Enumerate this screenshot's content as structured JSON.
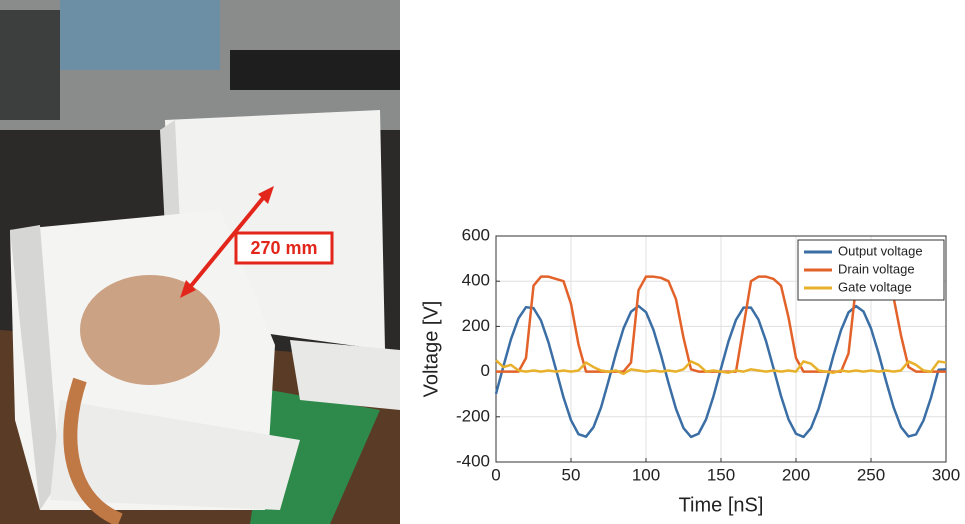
{
  "photo": {
    "annotation": "270 mm"
  },
  "chart_data": {
    "type": "line",
    "xlabel": "Time [nS]",
    "ylabel": "Voltage [V]",
    "x": [
      0,
      5,
      10,
      15,
      20,
      25,
      30,
      35,
      40,
      45,
      50,
      55,
      60,
      65,
      70,
      75,
      80,
      85,
      90,
      95,
      100,
      105,
      110,
      115,
      120,
      125,
      130,
      135,
      140,
      145,
      150,
      155,
      160,
      165,
      170,
      175,
      180,
      185,
      190,
      195,
      200,
      205,
      210,
      215,
      220,
      225,
      230,
      235,
      240,
      245,
      250,
      255,
      260,
      265,
      270,
      275,
      280,
      285,
      290,
      295,
      300
    ],
    "series": [
      {
        "name": "Output voltage",
        "color": "#3a6ea5",
        "values": [
          -98,
          25,
          144,
          236,
          285,
          281,
          226,
          129,
          9,
          -114,
          -215,
          -277,
          -288,
          -246,
          -159,
          -42,
          81,
          191,
          265,
          290,
          263,
          184,
          73,
          -50,
          -165,
          -250,
          -289,
          -275,
          -212,
          -109,
          14,
          134,
          229,
          283,
          283,
          230,
          135,
          15,
          -108,
          -211,
          -275,
          -289,
          -250,
          -166,
          -51,
          72,
          183,
          262,
          290,
          266,
          191,
          82,
          -41,
          -157,
          -245,
          -287,
          -278,
          -216,
          -115,
          8,
          10
        ]
      },
      {
        "name": "Drain voltage",
        "color": "#e2622a",
        "values": [
          0,
          0,
          0,
          0,
          60,
          380,
          420,
          420,
          410,
          400,
          300,
          120,
          0,
          0,
          0,
          0,
          0,
          0,
          40,
          360,
          420,
          420,
          415,
          400,
          320,
          150,
          10,
          0,
          0,
          0,
          0,
          0,
          0,
          200,
          400,
          420,
          420,
          410,
          380,
          240,
          60,
          0,
          0,
          0,
          0,
          0,
          0,
          80,
          380,
          420,
          420,
          415,
          400,
          330,
          160,
          20,
          0,
          0,
          0,
          0,
          0
        ]
      },
      {
        "name": "Gate voltage",
        "color": "#e8b12c",
        "values": [
          50,
          20,
          30,
          5,
          0,
          5,
          0,
          5,
          0,
          5,
          0,
          5,
          40,
          20,
          5,
          0,
          5,
          -10,
          10,
          5,
          0,
          5,
          0,
          5,
          0,
          10,
          45,
          30,
          0,
          5,
          0,
          -5,
          5,
          0,
          10,
          5,
          0,
          5,
          0,
          5,
          0,
          45,
          35,
          5,
          0,
          -5,
          5,
          0,
          5,
          0,
          5,
          0,
          5,
          0,
          5,
          45,
          30,
          5,
          0,
          45,
          40
        ]
      }
    ],
    "xlim": [
      0,
      300
    ],
    "xticks": [
      0,
      50,
      100,
      150,
      200,
      250,
      300
    ],
    "ylim": [
      -400,
      600
    ],
    "yticks": [
      -400,
      -200,
      0,
      200,
      400,
      600
    ],
    "grid": true,
    "legend": "upper-right"
  }
}
